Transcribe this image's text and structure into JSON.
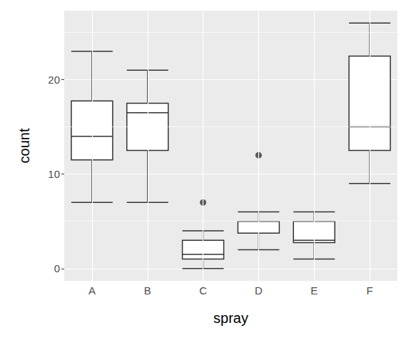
{
  "chart_data": {
    "type": "boxplot",
    "x_label": "spray",
    "y_label": "count",
    "categories": [
      "A",
      "B",
      "C",
      "D",
      "E",
      "F"
    ],
    "boxes": [
      {
        "min": 7,
        "q1": 11.5,
        "median": 14,
        "q3": 17.75,
        "max": 23
      },
      {
        "min": 7,
        "q1": 12.5,
        "median": 16.5,
        "q3": 17.5,
        "max": 21
      },
      {
        "min": 0,
        "q1": 1,
        "median": 1.5,
        "q3": 3,
        "max": 4
      },
      {
        "min": 2,
        "q1": 3.75,
        "median": 5,
        "q3": 5,
        "max": 6
      },
      {
        "min": 1,
        "q1": 2.75,
        "median": 3,
        "q3": 5,
        "max": 6
      },
      {
        "min": 9,
        "q1": 12.5,
        "median": 15,
        "q3": 22.5,
        "max": 26
      }
    ],
    "outliers": [
      {
        "category": "C",
        "value": 7
      },
      {
        "category": "D",
        "value": 12
      }
    ],
    "ylim": [
      -1.3,
      27.3
    ],
    "yticks": [
      0,
      10,
      20
    ],
    "color": "#333333",
    "grid": true
  }
}
